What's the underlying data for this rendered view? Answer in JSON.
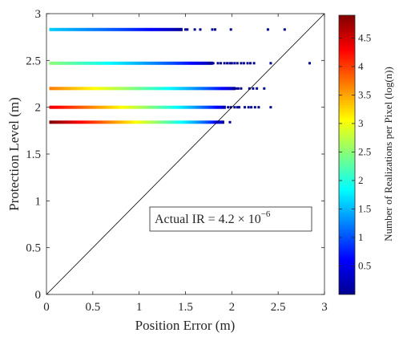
{
  "chart_data": {
    "type": "scatter",
    "subtype": "2d-histogram",
    "xlabel": "Position Error (m)",
    "ylabel": "Protection Level (m)",
    "xlim": [
      0,
      3
    ],
    "ylim": [
      0,
      3
    ],
    "x_ticks": [
      "0",
      "0.5",
      "1",
      "1.5",
      "2",
      "2.5",
      "3"
    ],
    "y_ticks": [
      "0",
      "0.5",
      "1",
      "1.5",
      "2",
      "2.5",
      "3"
    ],
    "grid": false,
    "diagonal_line": {
      "from": [
        0,
        0
      ],
      "to": [
        3,
        3
      ],
      "color": "#000000"
    },
    "annotation": {
      "base": "Actual IR = 4.2 × 10",
      "exponent": "−6",
      "position_data": [
        1.15,
        0.83
      ]
    },
    "colorbar": {
      "label": "Number of Realizations per Pixel (log(n))",
      "range": [
        0,
        4.9
      ],
      "ticks": [
        "0.5",
        "1",
        "1.5",
        "2",
        "2.5",
        "3",
        "3.5",
        "4",
        "4.5"
      ],
      "colormap": "jet"
    },
    "bands": [
      {
        "y": 2.83,
        "x_start": 0.03,
        "x_end": 1.45,
        "peak_log_n": 1.6
      },
      {
        "y": 2.47,
        "x_start": 0.03,
        "x_end": 1.78,
        "peak_log_n": 2.5
      },
      {
        "y": 2.2,
        "x_start": 0.03,
        "x_end": 2.03,
        "peak_log_n": 3.7
      },
      {
        "y": 2.0,
        "x_start": 0.03,
        "x_end": 1.93,
        "peak_log_n": 4.4
      },
      {
        "y": 1.84,
        "x_start": 0.03,
        "x_end": 1.9,
        "peak_log_n": 4.9
      }
    ],
    "outliers": [
      {
        "x": 1.5,
        "y": 2.83
      },
      {
        "x": 1.52,
        "y": 2.83
      },
      {
        "x": 1.6,
        "y": 2.83
      },
      {
        "x": 1.66,
        "y": 2.83
      },
      {
        "x": 1.79,
        "y": 2.83
      },
      {
        "x": 1.82,
        "y": 2.83
      },
      {
        "x": 1.99,
        "y": 2.83
      },
      {
        "x": 2.39,
        "y": 2.83
      },
      {
        "x": 2.57,
        "y": 2.83
      },
      {
        "x": 1.8,
        "y": 2.47
      },
      {
        "x": 1.85,
        "y": 2.47
      },
      {
        "x": 1.88,
        "y": 2.47
      },
      {
        "x": 1.92,
        "y": 2.47
      },
      {
        "x": 1.95,
        "y": 2.47
      },
      {
        "x": 1.98,
        "y": 2.47
      },
      {
        "x": 2.0,
        "y": 2.47
      },
      {
        "x": 2.03,
        "y": 2.47
      },
      {
        "x": 2.06,
        "y": 2.47
      },
      {
        "x": 2.1,
        "y": 2.47
      },
      {
        "x": 2.13,
        "y": 2.47
      },
      {
        "x": 2.17,
        "y": 2.47
      },
      {
        "x": 2.2,
        "y": 2.47
      },
      {
        "x": 2.24,
        "y": 2.47
      },
      {
        "x": 2.42,
        "y": 2.47
      },
      {
        "x": 2.84,
        "y": 2.47
      },
      {
        "x": 2.05,
        "y": 2.2
      },
      {
        "x": 2.07,
        "y": 2.2
      },
      {
        "x": 2.1,
        "y": 2.2
      },
      {
        "x": 2.19,
        "y": 2.2
      },
      {
        "x": 2.23,
        "y": 2.2
      },
      {
        "x": 2.27,
        "y": 2.2
      },
      {
        "x": 2.35,
        "y": 2.2
      },
      {
        "x": 1.96,
        "y": 2.0
      },
      {
        "x": 1.99,
        "y": 2.0
      },
      {
        "x": 2.03,
        "y": 2.0
      },
      {
        "x": 2.06,
        "y": 2.0
      },
      {
        "x": 2.08,
        "y": 2.0
      },
      {
        "x": 2.14,
        "y": 2.0
      },
      {
        "x": 2.18,
        "y": 2.0
      },
      {
        "x": 2.21,
        "y": 2.0
      },
      {
        "x": 2.25,
        "y": 2.0
      },
      {
        "x": 2.29,
        "y": 2.0
      },
      {
        "x": 2.42,
        "y": 2.0
      },
      {
        "x": 1.98,
        "y": 1.84
      }
    ]
  }
}
